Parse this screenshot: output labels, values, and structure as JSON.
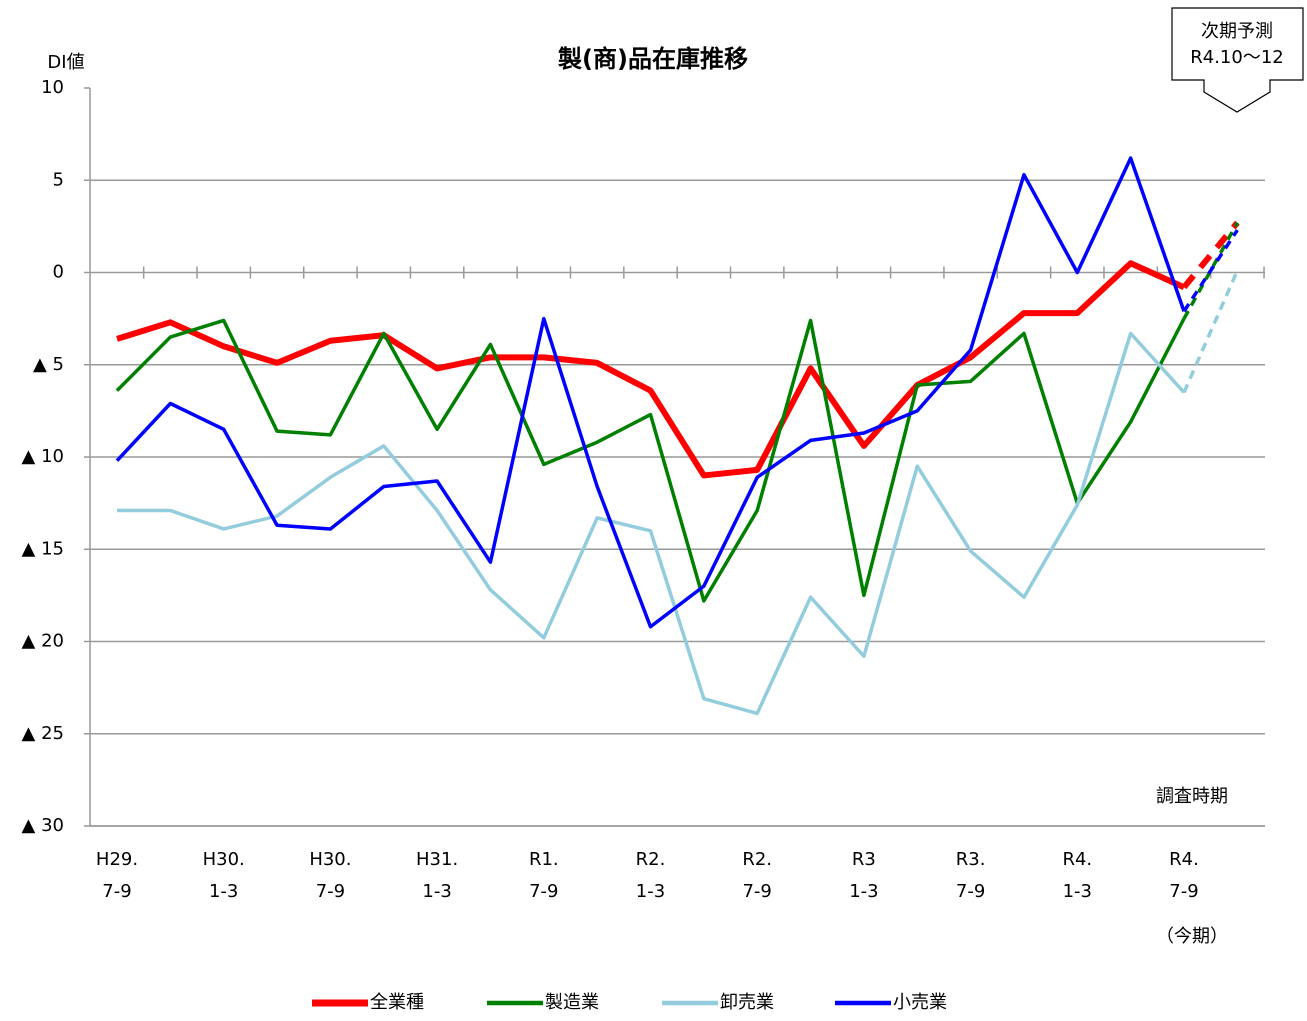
{
  "chart_data": {
    "type": "line",
    "title": "製(商)品在庫推移",
    "y_label": "DI値",
    "x_label": "調査時期",
    "annotations": {
      "current": "（今期）",
      "forecast": [
        "次期予測",
        "R4.10〜12"
      ]
    },
    "categories": [
      [
        "H29.",
        "7-9"
      ],
      null,
      [
        "H30.",
        "1-3"
      ],
      null,
      [
        "H30.",
        "7-9"
      ],
      null,
      [
        "H31.",
        "1-3"
      ],
      null,
      [
        "R1.",
        "7-9"
      ],
      null,
      [
        "R2.",
        "1-3"
      ],
      null,
      [
        "R2.",
        "7-9"
      ],
      null,
      [
        "R3",
        "1-3"
      ],
      null,
      [
        "R3.",
        "7-9"
      ],
      null,
      [
        "R4.",
        "1-3"
      ],
      null,
      [
        "R4.",
        "7-9"
      ],
      null
    ],
    "series": [
      {
        "name": "全業種",
        "color": "#ff0000",
        "width": 6,
        "values": [
          -3.6,
          -2.7,
          -4.0,
          -4.9,
          -3.7,
          -3.4,
          -5.2,
          -4.6,
          -4.6,
          -4.9,
          -6.4,
          -11.0,
          -10.7,
          -5.2,
          -9.4,
          -6.1,
          -4.6,
          -2.2,
          -2.2,
          0.5,
          -0.8,
          2.7
        ]
      },
      {
        "name": "製造業",
        "color": "#008000",
        "width": 3.5,
        "values": [
          -6.4,
          -3.5,
          -2.6,
          -8.6,
          -8.8,
          -3.3,
          -8.5,
          -3.9,
          -10.4,
          -9.2,
          -7.7,
          -17.8,
          -12.9,
          -2.6,
          -17.5,
          -6.1,
          -5.9,
          -3.3,
          -12.5,
          -8.1,
          -2.5,
          2.7
        ]
      },
      {
        "name": "卸売業",
        "color": "#93cddd",
        "width": 3.5,
        "values": [
          -12.9,
          -12.9,
          -13.9,
          -13.2,
          -11.1,
          -9.4,
          -12.9,
          -17.2,
          -19.8,
          -13.3,
          -14.0,
          -23.1,
          -23.9,
          -17.6,
          -20.8,
          -10.5,
          -15.1,
          -17.6,
          -12.6,
          -3.3,
          -6.5,
          0.1
        ]
      },
      {
        "name": "小売業",
        "color": "#0000ff",
        "width": 3.5,
        "values": [
          -10.2,
          -7.1,
          -8.5,
          -13.7,
          -13.9,
          -11.6,
          -11.3,
          -15.7,
          -2.5,
          -11.6,
          -19.2,
          -17.0,
          -11.1,
          -9.1,
          -8.7,
          -7.5,
          -4.2,
          5.3,
          0.0,
          6.2,
          -2.1,
          2.3
        ]
      }
    ],
    "ylim": [
      -30,
      10
    ],
    "yticks": [
      10,
      5,
      0,
      {
        "value": -5,
        "label": "▲ 5"
      },
      {
        "value": -10,
        "label": "▲ 10"
      },
      {
        "value": -15,
        "label": "▲ 15"
      },
      {
        "value": -20,
        "label": "▲ 20"
      },
      {
        "value": -25,
        "label": "▲ 25"
      },
      {
        "value": -30,
        "label": "▲ 30"
      }
    ],
    "grid": true
  }
}
